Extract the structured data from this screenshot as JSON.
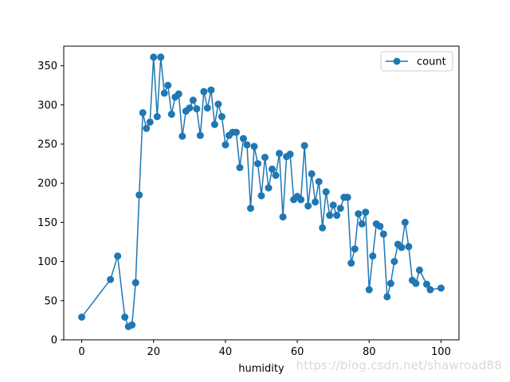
{
  "chart_data": {
    "type": "line",
    "title": "",
    "xlabel": "humidity",
    "ylabel": "",
    "xlim": [
      -5,
      105
    ],
    "ylim": [
      0,
      375
    ],
    "xticks": [
      0,
      20,
      40,
      60,
      80,
      100
    ],
    "yticks": [
      0,
      50,
      100,
      150,
      200,
      250,
      300,
      350
    ],
    "legend": {
      "position": "upper-right",
      "entries": [
        "count"
      ]
    },
    "series": [
      {
        "name": "count",
        "color": "#1f77b4",
        "marker": "circle",
        "x": [
          0,
          8,
          10,
          12,
          13,
          14,
          15,
          16,
          17,
          18,
          19,
          20,
          21,
          22,
          23,
          24,
          25,
          26,
          27,
          28,
          29,
          30,
          31,
          32,
          33,
          34,
          35,
          36,
          37,
          38,
          39,
          40,
          41,
          42,
          43,
          44,
          45,
          46,
          47,
          48,
          49,
          50,
          51,
          52,
          53,
          54,
          55,
          56,
          57,
          58,
          59,
          60,
          61,
          62,
          63,
          64,
          65,
          66,
          67,
          68,
          69,
          70,
          71,
          72,
          73,
          74,
          75,
          76,
          77,
          78,
          79,
          80,
          81,
          82,
          83,
          84,
          85,
          86,
          87,
          88,
          89,
          90,
          91,
          92,
          93,
          94,
          96,
          97,
          100
        ],
        "values": [
          29,
          77,
          107,
          29,
          17,
          19,
          73,
          185,
          290,
          270,
          278,
          361,
          285,
          361,
          315,
          325,
          288,
          310,
          314,
          260,
          292,
          296,
          306,
          295,
          261,
          317,
          296,
          319,
          275,
          301,
          285,
          249,
          261,
          265,
          265,
          220,
          257,
          249,
          168,
          247,
          225,
          184,
          233,
          194,
          218,
          210,
          238,
          157,
          234,
          237,
          179,
          183,
          179,
          248,
          171,
          212,
          176,
          202,
          143,
          189,
          159,
          172,
          159,
          168,
          182,
          182,
          98,
          116,
          161,
          148,
          163,
          64,
          107,
          148,
          145,
          135,
          55,
          72,
          100,
          122,
          118,
          150,
          119,
          76,
          72,
          89,
          71,
          64,
          66
        ]
      }
    ]
  },
  "watermark": "https://blog.csdn.net/shawroad88"
}
